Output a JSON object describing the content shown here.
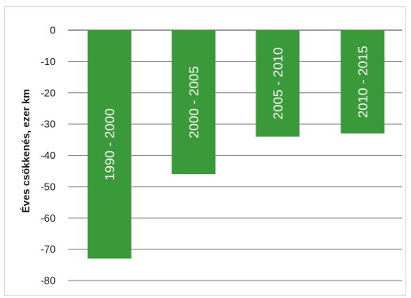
{
  "chart_data": {
    "type": "bar",
    "categories": [
      "1990 - 2000",
      "2000 - 2005",
      "2005 - 2010",
      "2010 - 2015"
    ],
    "values": [
      -73,
      -46,
      -34,
      -33
    ],
    "title": "",
    "xlabel": "",
    "ylabel": "Éves csökkenés, ezer km",
    "ylim": [
      -80,
      0
    ],
    "yticks": [
      "0",
      "-10",
      "-20",
      "-30",
      "-40",
      "-50",
      "-60",
      "-70",
      "-80"
    ],
    "grid": true,
    "legend": "none",
    "colors": {
      "bar": "#3a9a3a",
      "grid": "#7f7f7f",
      "baseline": "#7f7f7f"
    }
  }
}
